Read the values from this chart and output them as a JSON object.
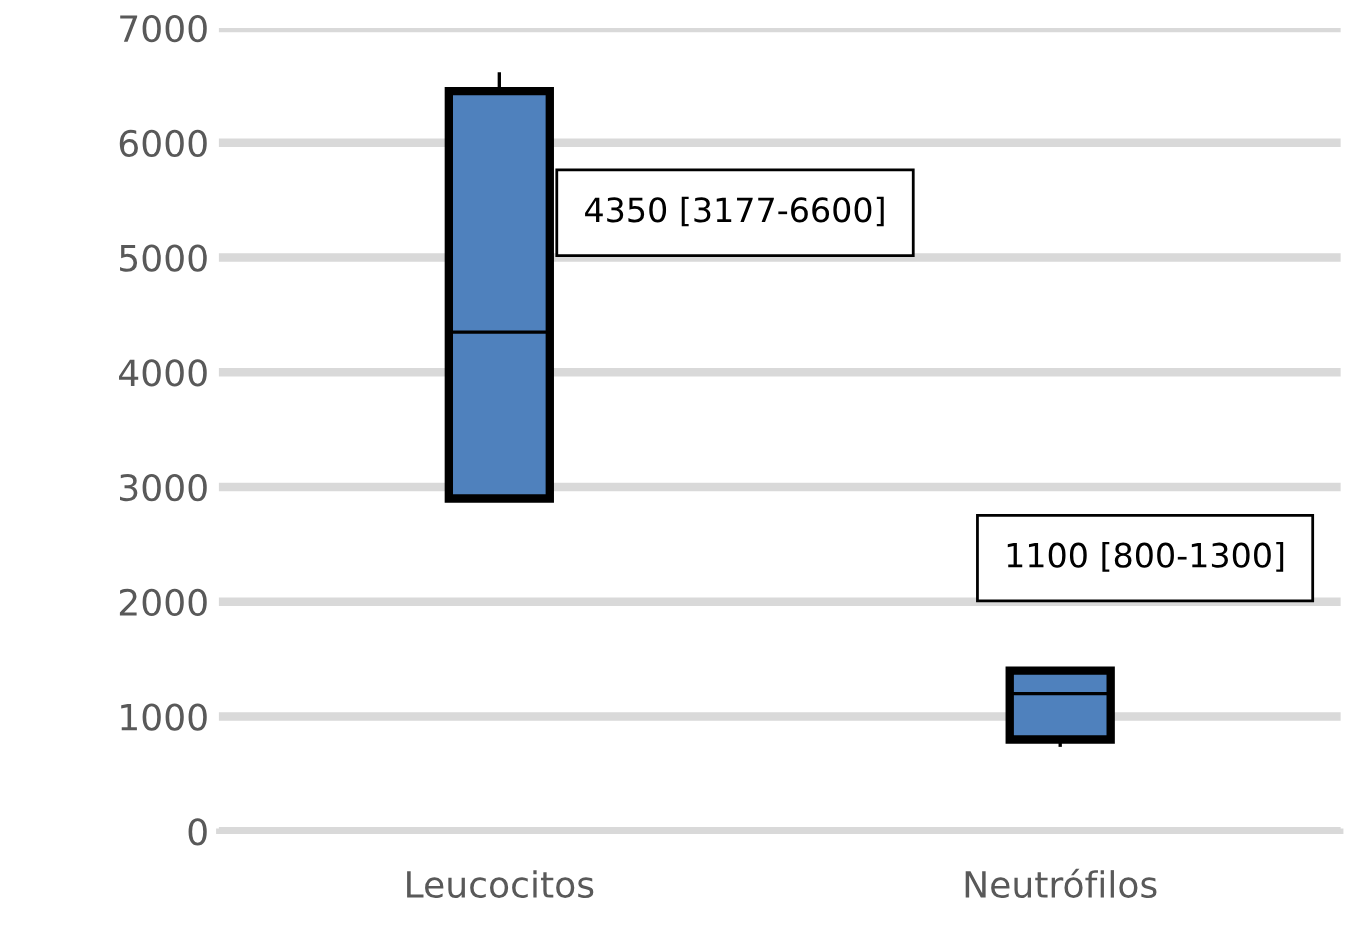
{
  "chart_data": {
    "type": "box",
    "categories": [
      "Leucocitos",
      "Neutrófilos"
    ],
    "boxes": [
      {
        "low": 2900,
        "q1": 2900,
        "median": 4350,
        "q3": 6450,
        "high": 6600
      },
      {
        "low": 750,
        "q1": 800,
        "median": 1200,
        "q3": 1400,
        "high": 1400
      }
    ],
    "color": "#4f81bd",
    "ylim": [
      0,
      7000
    ],
    "yticks": [
      0,
      1000,
      2000,
      3000,
      4000,
      5000,
      6000,
      7000
    ],
    "grid": "y",
    "annotations": [
      "4350 [3177-6600]",
      "1100 [800-1300]"
    ]
  }
}
